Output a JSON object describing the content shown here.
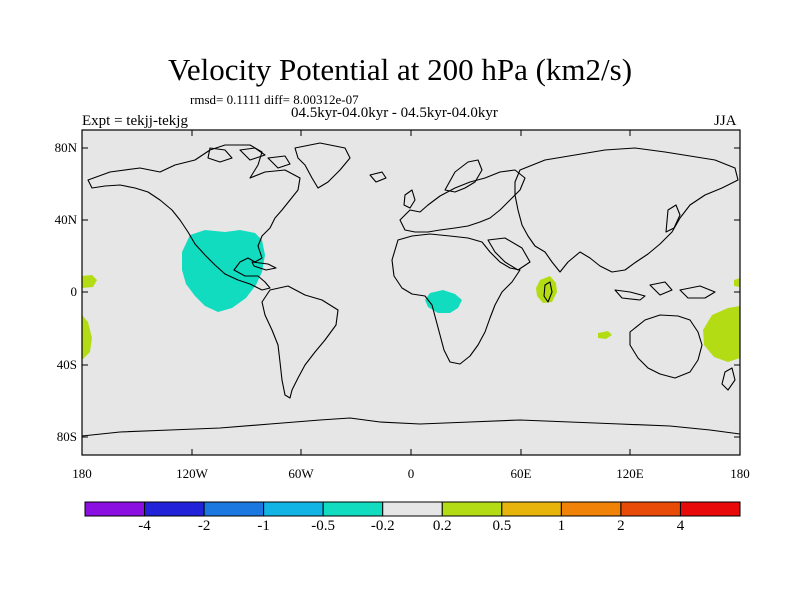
{
  "title": "Velocity Potential at 200 hPa (km2/s)",
  "stats": "rmsd= 0.1111 diff= 8.00312e-07",
  "subtitle": "04.5kyr-04.0kyr - 04.5kyr-04.0kyr",
  "left_label": "Expt = tekjj-tekjg",
  "right_label": "JJA",
  "lat_ticks": [
    "80N",
    "40N",
    "0",
    "40S",
    "80S"
  ],
  "lon_ticks": [
    "180",
    "120W",
    "60W",
    "0",
    "60E",
    "120E",
    "180"
  ],
  "colorbar": {
    "colors": [
      "#8a0fe0",
      "#2222d8",
      "#1a78e0",
      "#12b4e6",
      "#12dcc0",
      "#e6e6e6",
      "#b4dc14",
      "#e6b40a",
      "#f08208",
      "#e84a08",
      "#e80a0a"
    ],
    "labels": [
      "-4",
      "-2",
      "-1",
      "-0.5",
      "-0.2",
      "0.2",
      "0.5",
      "1",
      "2",
      "4"
    ]
  },
  "colors": {
    "background": "#e6e6e6",
    "negative_region": "#12dcc0",
    "positive_region": "#b4dc14"
  }
}
